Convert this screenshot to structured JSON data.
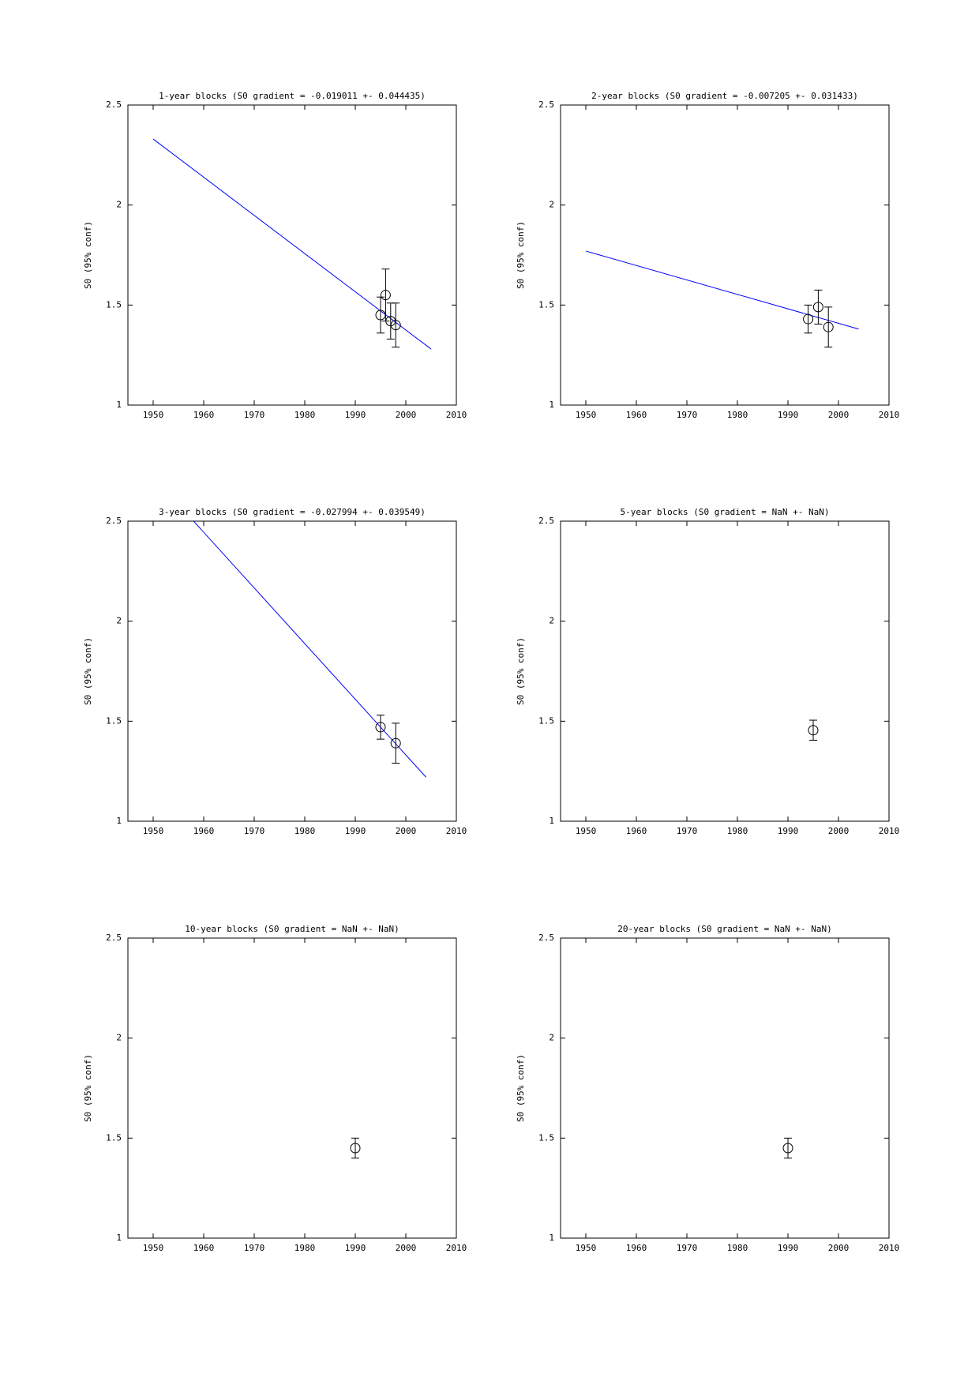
{
  "chart_data": [
    {
      "type": "scatter",
      "title": "1-year blocks (S0 gradient = -0.019011 +- 0.044435)",
      "ylabel": "S0 (95% conf)",
      "x": [
        1995,
        1996,
        1997,
        1998
      ],
      "values": [
        1.45,
        1.55,
        1.42,
        1.4
      ],
      "errors": [
        0.09,
        0.13,
        0.09,
        0.11
      ],
      "color": "#000000",
      "line_x": [
        1950,
        2005
      ],
      "line_values": [
        2.33,
        1.28
      ],
      "line_color": "#0000ff",
      "xlim": [
        1945,
        2010
      ],
      "xticks": [
        1950,
        1960,
        1970,
        1980,
        1990,
        2000,
        2010
      ],
      "ylim": [
        1,
        2.5
      ],
      "yticks": [
        1,
        1.5,
        2,
        2.5
      ]
    },
    {
      "type": "scatter",
      "title": "2-year blocks (S0 gradient = -0.007205 +- 0.031433)",
      "ylabel": "S0 (95% conf)",
      "x": [
        1994,
        1996,
        1998
      ],
      "values": [
        1.43,
        1.49,
        1.39
      ],
      "errors": [
        0.07,
        0.085,
        0.1
      ],
      "color": "#000000",
      "line_x": [
        1950,
        2004
      ],
      "line_values": [
        1.77,
        1.38
      ],
      "line_color": "#0000ff",
      "xlim": [
        1945,
        2010
      ],
      "xticks": [
        1950,
        1960,
        1970,
        1980,
        1990,
        2000,
        2010
      ],
      "ylim": [
        1,
        2.5
      ],
      "yticks": [
        1,
        1.5,
        2,
        2.5
      ]
    },
    {
      "type": "scatter",
      "title": "3-year blocks (S0 gradient = -0.027994 +- 0.039549)",
      "ylabel": "S0 (95% conf)",
      "x": [
        1995,
        1998
      ],
      "values": [
        1.47,
        1.39
      ],
      "errors": [
        0.06,
        0.1
      ],
      "color": "#000000",
      "line_x": [
        1958,
        2004
      ],
      "line_values": [
        2.5,
        1.22
      ],
      "line_color": "#0000ff",
      "xlim": [
        1945,
        2010
      ],
      "xticks": [
        1950,
        1960,
        1970,
        1980,
        1990,
        2000,
        2010
      ],
      "ylim": [
        1,
        2.5
      ],
      "yticks": [
        1,
        1.5,
        2,
        2.5
      ]
    },
    {
      "type": "scatter",
      "title": "5-year blocks (S0 gradient = NaN +- NaN)",
      "ylabel": "S0 (95% conf)",
      "x": [
        1995
      ],
      "values": [
        1.455
      ],
      "errors": [
        0.05
      ],
      "color": "#000000",
      "xlim": [
        1945,
        2010
      ],
      "xticks": [
        1950,
        1960,
        1970,
        1980,
        1990,
        2000,
        2010
      ],
      "ylim": [
        1,
        2.5
      ],
      "yticks": [
        1,
        1.5,
        2,
        2.5
      ]
    },
    {
      "type": "scatter",
      "title": "10-year blocks (S0 gradient = NaN +- NaN)",
      "ylabel": "S0 (95% conf)",
      "x": [
        1990
      ],
      "values": [
        1.45
      ],
      "errors": [
        0.05
      ],
      "color": "#000000",
      "xlim": [
        1945,
        2010
      ],
      "xticks": [
        1950,
        1960,
        1970,
        1980,
        1990,
        2000,
        2010
      ],
      "ylim": [
        1,
        2.5
      ],
      "yticks": [
        1,
        1.5,
        2,
        2.5
      ]
    },
    {
      "type": "scatter",
      "title": "20-year blocks (S0 gradient = NaN +- NaN)",
      "ylabel": "S0 (95% conf)",
      "x": [
        1990
      ],
      "values": [
        1.45
      ],
      "errors": [
        0.05
      ],
      "color": "#000000",
      "xlim": [
        1945,
        2010
      ],
      "xticks": [
        1950,
        1960,
        1970,
        1980,
        1990,
        2000,
        2010
      ],
      "ylim": [
        1,
        2.5
      ],
      "yticks": [
        1,
        1.5,
        2,
        2.5
      ]
    }
  ]
}
